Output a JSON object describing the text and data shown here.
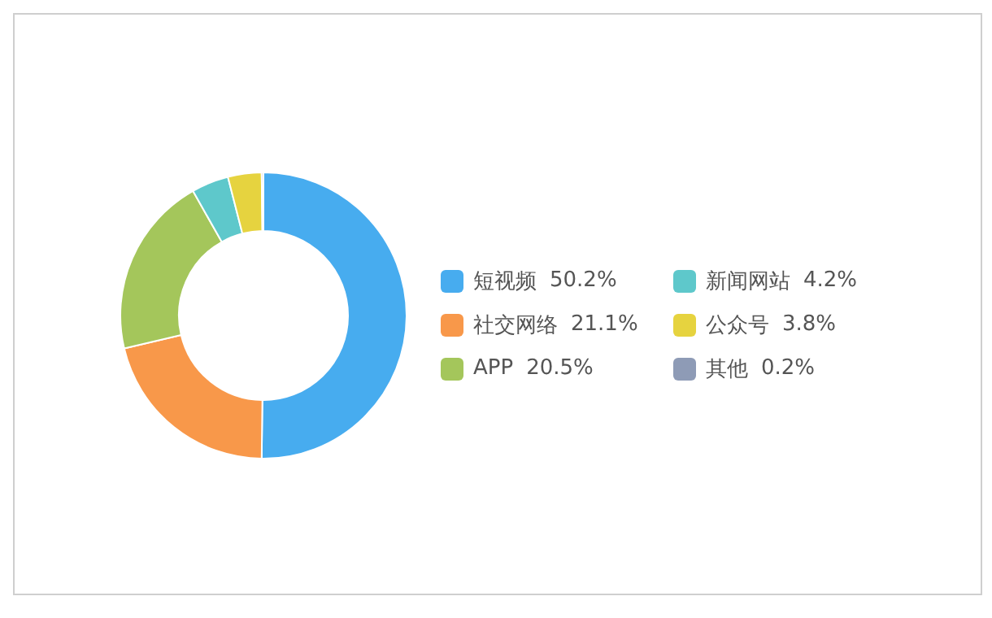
{
  "chart_data": {
    "type": "donut",
    "categories": [
      "短视频",
      "社交网络",
      "APP",
      "新闻网站",
      "公众号",
      "其他"
    ],
    "values": [
      50.2,
      21.1,
      20.5,
      4.2,
      3.8,
      0.2
    ],
    "value_labels": [
      "50.2%",
      "21.1%",
      "20.5%",
      "4.2%",
      "3.8%",
      "0.2%"
    ],
    "colors": [
      "#47acef",
      "#f8984a",
      "#a4c65b",
      "#5ec8cb",
      "#e6d33f",
      "#8e9bb6"
    ],
    "legend": "right"
  }
}
